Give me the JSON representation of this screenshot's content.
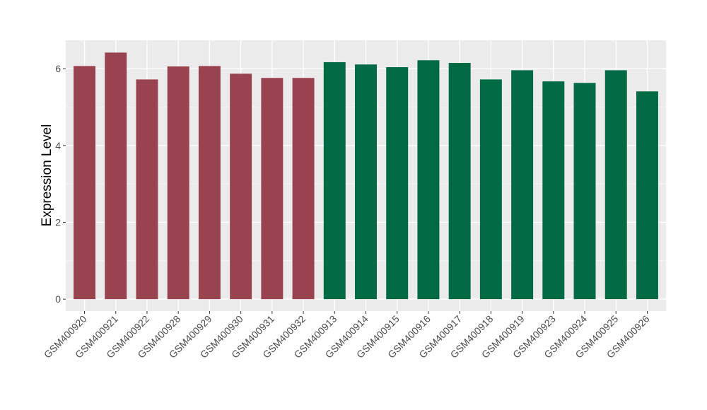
{
  "chart_data": {
    "type": "bar",
    "y_label": "Expression Level",
    "categories": [
      "GSM400920",
      "GSM400921",
      "GSM400922",
      "GSM400928",
      "GSM400929",
      "GSM400930",
      "GSM400931",
      "GSM400932",
      "GSM400913",
      "GSM400914",
      "GSM400915",
      "GSM400916",
      "GSM400917",
      "GSM400918",
      "GSM400919",
      "GSM400923",
      "GSM400924",
      "GSM400925",
      "GSM400926"
    ],
    "values": [
      6.07,
      6.42,
      5.72,
      6.06,
      6.07,
      5.87,
      5.76,
      5.76,
      6.17,
      6.11,
      6.04,
      6.22,
      6.15,
      5.72,
      5.96,
      5.67,
      5.63,
      5.96,
      5.41
    ],
    "colors": [
      "#9a4350",
      "#9a4350",
      "#9a4350",
      "#9a4350",
      "#9a4350",
      "#9a4350",
      "#9a4350",
      "#9a4350",
      "#006a45",
      "#006a45",
      "#006a45",
      "#006a45",
      "#006a45",
      "#006a45",
      "#006a45",
      "#006a45",
      "#006a45",
      "#006a45",
      "#006a45"
    ],
    "ylim": [
      -0.31,
      6.74
    ],
    "yticks": [
      0,
      2,
      4,
      6
    ],
    "grid": true,
    "minor_grid": true
  }
}
